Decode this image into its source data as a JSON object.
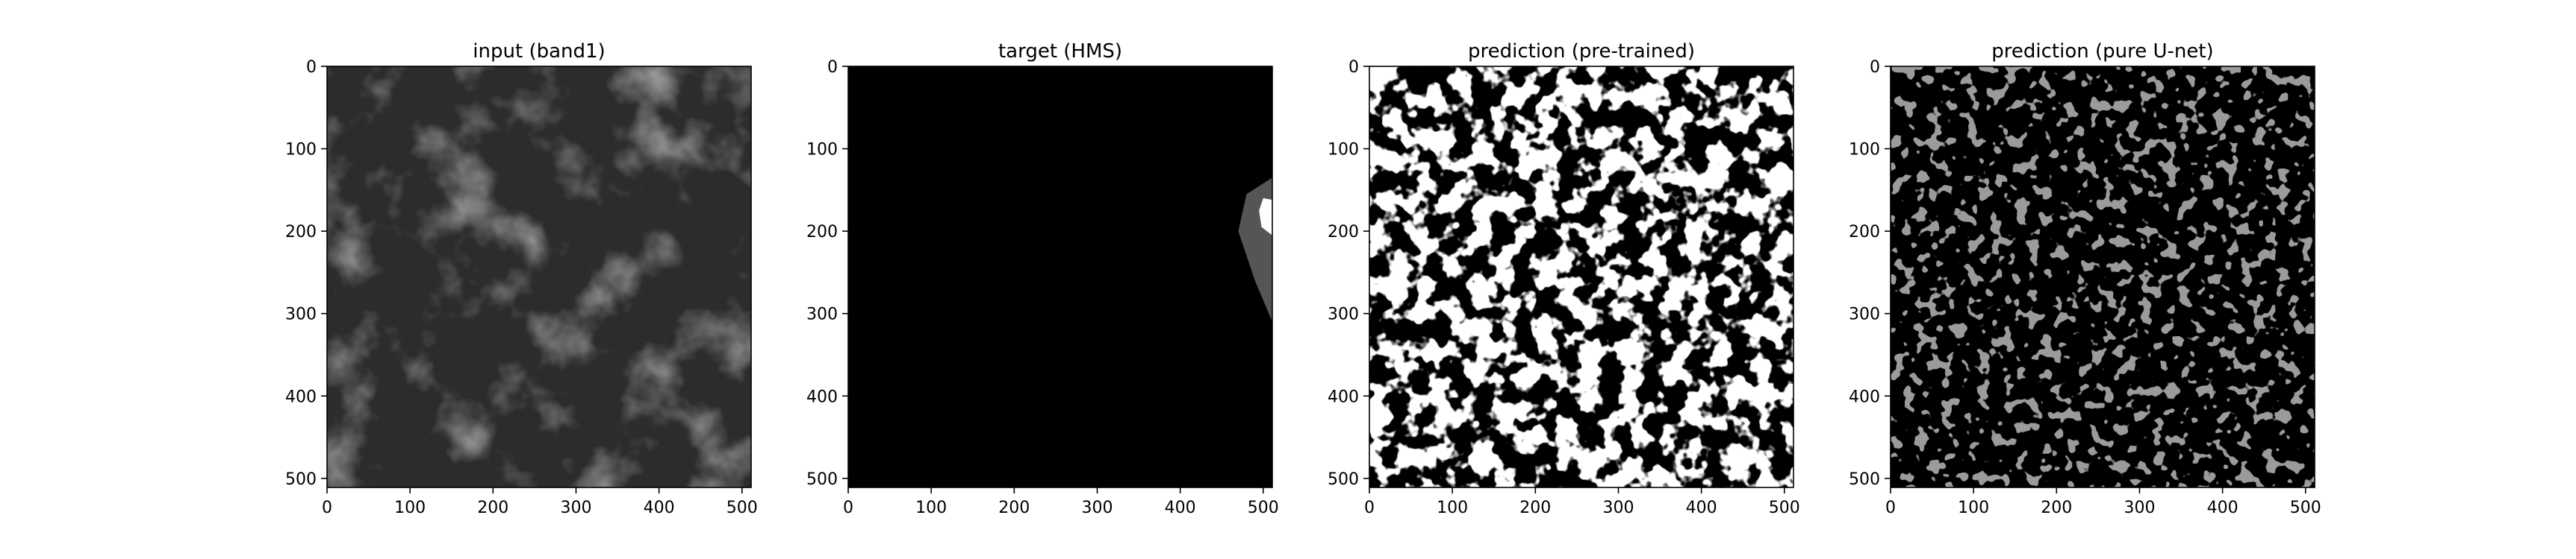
{
  "chart_data": [
    {
      "type": "heatmap",
      "title": "input (band1)",
      "image": "satellite-cloud-grayscale",
      "xlim": [
        0,
        511
      ],
      "ylim": [
        511,
        0
      ],
      "xticks": [
        "0",
        "100",
        "200",
        "300",
        "400",
        "500"
      ],
      "yticks": [
        "0",
        "100",
        "200",
        "300",
        "400",
        "500"
      ],
      "grid": false
    },
    {
      "type": "heatmap",
      "title": "target (HMS)",
      "image": "smoke-mask",
      "xlim": [
        0,
        511
      ],
      "ylim": [
        511,
        0
      ],
      "xticks": [
        "0",
        "100",
        "200",
        "300",
        "400",
        "500"
      ],
      "yticks": [
        "0",
        "100",
        "200",
        "300",
        "400",
        "500"
      ],
      "grid": false,
      "regions": [
        {
          "level": "gray",
          "polygon": [
            [
              511,
              135
            ],
            [
              480,
              155
            ],
            [
              470,
              200
            ],
            [
              490,
              260
            ],
            [
              511,
              310
            ]
          ]
        },
        {
          "level": "white",
          "polygon": [
            [
              511,
              162
            ],
            [
              500,
              160
            ],
            [
              495,
              175
            ],
            [
              498,
              195
            ],
            [
              511,
              205
            ]
          ]
        }
      ]
    },
    {
      "type": "heatmap",
      "title": "prediction (pre-trained)",
      "image": "binary-prediction-mask",
      "xlim": [
        0,
        511
      ],
      "ylim": [
        511,
        0
      ],
      "xticks": [
        "0",
        "100",
        "200",
        "300",
        "400",
        "500"
      ],
      "yticks": [
        "0",
        "100",
        "200",
        "300",
        "400",
        "500"
      ],
      "grid": false
    },
    {
      "type": "heatmap",
      "title": "prediction (pure U-net)",
      "image": "sparse-prediction-mask",
      "xlim": [
        0,
        511
      ],
      "ylim": [
        511,
        0
      ],
      "xticks": [
        "0",
        "100",
        "200",
        "300",
        "400",
        "500"
      ],
      "yticks": [
        "0",
        "100",
        "200",
        "300",
        "400",
        "500"
      ],
      "grid": false
    }
  ]
}
